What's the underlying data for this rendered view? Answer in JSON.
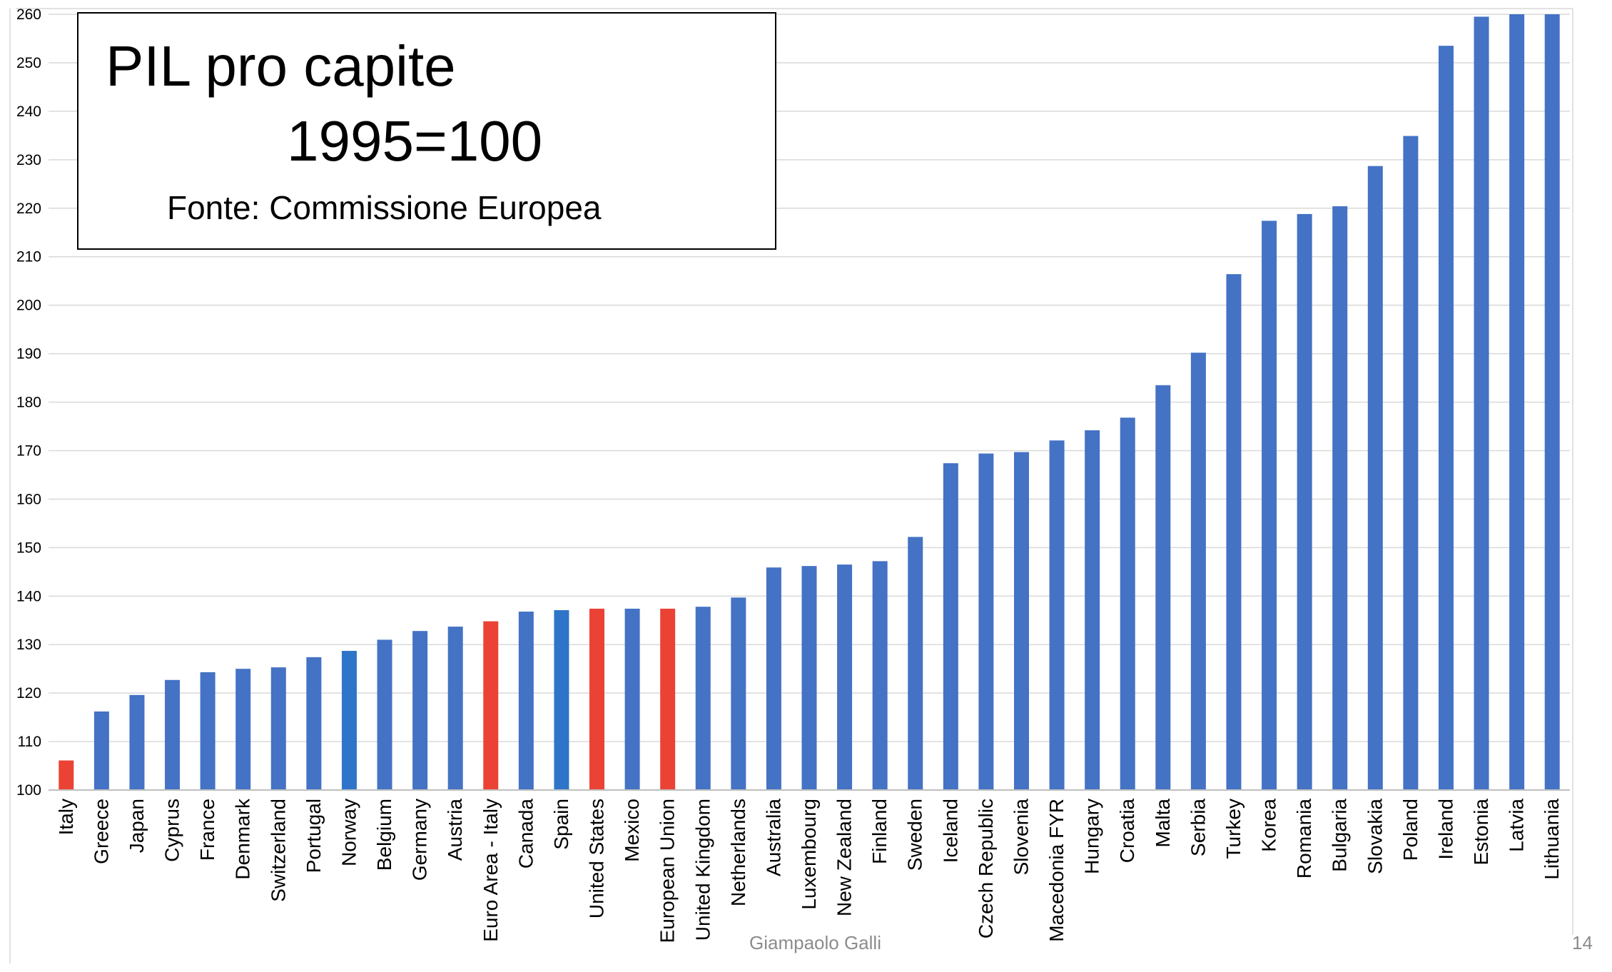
{
  "slide": {
    "title_line1": "PIL pro capite",
    "title_line2": "1995=100",
    "title_line3": "Fonte: Commissione Europea",
    "footer_author": "Giampaolo Galli",
    "page_number": "14"
  },
  "chart_data": {
    "type": "bar",
    "title": "PIL pro capite 1995=100",
    "subtitle": "Fonte: Commissione Europea",
    "xlabel": "",
    "ylabel": "",
    "ylim": [
      100,
      260
    ],
    "yticks": [
      100,
      110,
      120,
      130,
      140,
      150,
      160,
      170,
      180,
      190,
      200,
      210,
      220,
      230,
      240,
      250,
      260
    ],
    "grid": true,
    "legend": "none",
    "colors": {
      "default": "#4472c4",
      "red": "#ea4335",
      "highlight_blue": "#2e75c9"
    },
    "categories": [
      "Italy",
      "Greece",
      "Japan",
      "Cyprus",
      "France",
      "Denmark",
      "Switzerland",
      "Portugal",
      "Norway",
      "Belgium",
      "Germany",
      "Austria",
      "Euro Area - Italy",
      "Canada",
      "Spain",
      "United States",
      "Mexico",
      "European Union",
      "United Kingdom",
      "Netherlands",
      "Australia",
      "Luxembourg",
      "New Zealand",
      "Finland",
      "Sweden",
      "Iceland",
      "Czech Republic",
      "Slovenia",
      "Macedonia FYR",
      "Hungary",
      "Croatia",
      "Malta",
      "Serbia",
      "Turkey",
      "Korea",
      "Romania",
      "Bulgaria",
      "Slovakia",
      "Poland",
      "Ireland",
      "Estonia",
      "Latvia",
      "Lithuania"
    ],
    "values": [
      106.1,
      116.2,
      119.6,
      122.7,
      124.3,
      125.0,
      125.3,
      127.4,
      128.7,
      131.0,
      132.8,
      133.7,
      134.8,
      136.8,
      137.1,
      137.4,
      137.4,
      137.4,
      137.8,
      139.7,
      145.9,
      146.2,
      146.5,
      147.2,
      152.2,
      167.4,
      169.4,
      169.7,
      172.1,
      174.2,
      176.8,
      183.5,
      190.2,
      206.4,
      217.4,
      218.8,
      220.4,
      228.7,
      234.9,
      253.5,
      259.5,
      260,
      260
    ],
    "bar_colors": [
      "red",
      "default",
      "default",
      "default",
      "default",
      "default",
      "default",
      "default",
      "highlight_blue",
      "default",
      "default",
      "default",
      "red",
      "default",
      "highlight_blue",
      "red",
      "default",
      "red",
      "default",
      "default",
      "default",
      "default",
      "default",
      "default",
      "default",
      "default",
      "default",
      "default",
      "default",
      "default",
      "default",
      "default",
      "default",
      "default",
      "default",
      "default",
      "default",
      "default",
      "default",
      "default",
      "default",
      "default",
      "default"
    ]
  }
}
